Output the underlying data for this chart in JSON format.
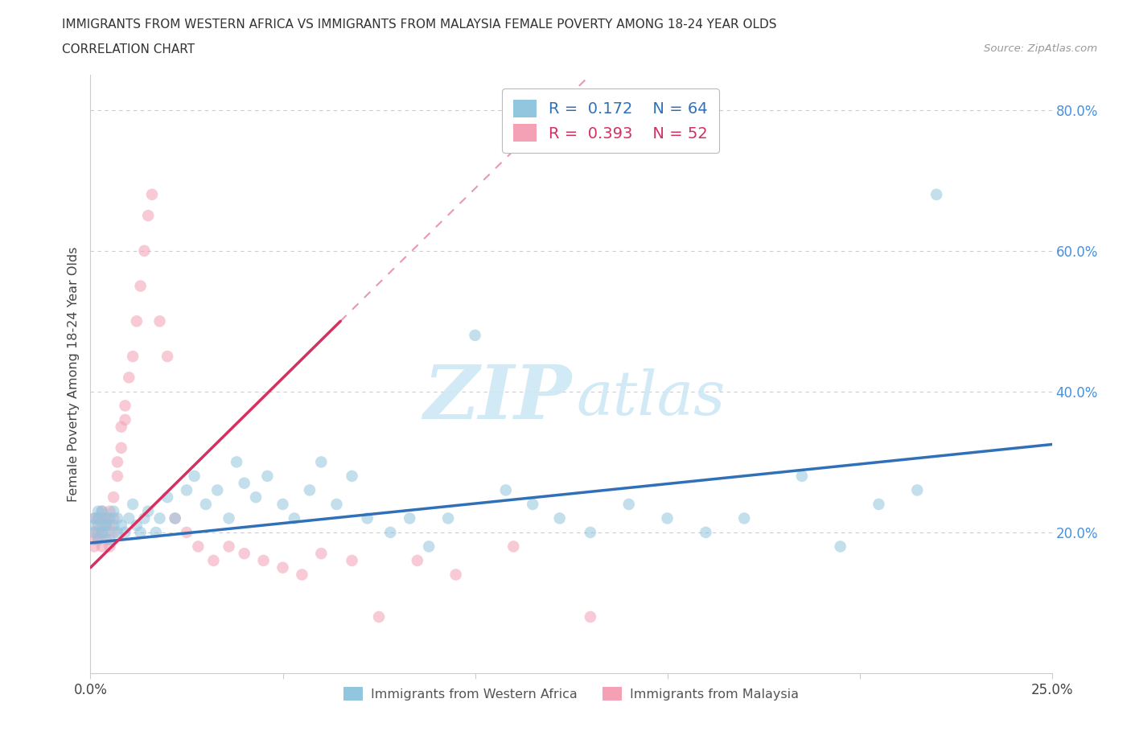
{
  "title_line1": "IMMIGRANTS FROM WESTERN AFRICA VS IMMIGRANTS FROM MALAYSIA FEMALE POVERTY AMONG 18-24 YEAR OLDS",
  "title_line2": "CORRELATION CHART",
  "source_text": "Source: ZipAtlas.com",
  "ylabel": "Female Poverty Among 18-24 Year Olds",
  "xlim": [
    0.0,
    0.25
  ],
  "ylim": [
    0.0,
    0.85
  ],
  "R_western_africa": 0.172,
  "N_western_africa": 64,
  "R_malaysia": 0.393,
  "N_malaysia": 52,
  "color_western_africa": "#92c5de",
  "color_malaysia": "#f4a0b5",
  "trendline_color_western_africa": "#3070b8",
  "trendline_color_malaysia": "#d63060",
  "watermark_color": "#cde8f5",
  "legend_label_1": "Immigrants from Western Africa",
  "legend_label_2": "Immigrants from Malaysia",
  "wa_x": [
    0.001,
    0.001,
    0.001,
    0.002,
    0.002,
    0.002,
    0.003,
    0.003,
    0.003,
    0.004,
    0.004,
    0.004,
    0.005,
    0.005,
    0.006,
    0.006,
    0.007,
    0.007,
    0.008,
    0.009,
    0.01,
    0.011,
    0.012,
    0.013,
    0.014,
    0.015,
    0.017,
    0.018,
    0.02,
    0.022,
    0.025,
    0.027,
    0.03,
    0.033,
    0.036,
    0.038,
    0.04,
    0.043,
    0.046,
    0.05,
    0.053,
    0.057,
    0.06,
    0.064,
    0.068,
    0.072,
    0.078,
    0.083,
    0.088,
    0.093,
    0.1,
    0.108,
    0.115,
    0.122,
    0.13,
    0.14,
    0.15,
    0.16,
    0.17,
    0.185,
    0.195,
    0.205,
    0.215,
    0.22
  ],
  "wa_y": [
    0.22,
    0.21,
    0.2,
    0.23,
    0.19,
    0.22,
    0.21,
    0.2,
    0.23,
    0.22,
    0.21,
    0.2,
    0.22,
    0.19,
    0.21,
    0.23,
    0.2,
    0.22,
    0.21,
    0.2,
    0.22,
    0.24,
    0.21,
    0.2,
    0.22,
    0.23,
    0.2,
    0.22,
    0.25,
    0.22,
    0.26,
    0.28,
    0.24,
    0.26,
    0.22,
    0.3,
    0.27,
    0.25,
    0.28,
    0.24,
    0.22,
    0.26,
    0.3,
    0.24,
    0.28,
    0.22,
    0.2,
    0.22,
    0.18,
    0.22,
    0.48,
    0.26,
    0.24,
    0.22,
    0.2,
    0.24,
    0.22,
    0.2,
    0.22,
    0.28,
    0.18,
    0.24,
    0.26,
    0.68
  ],
  "ma_x": [
    0.001,
    0.001,
    0.001,
    0.001,
    0.002,
    0.002,
    0.002,
    0.002,
    0.003,
    0.003,
    0.003,
    0.003,
    0.004,
    0.004,
    0.004,
    0.005,
    0.005,
    0.005,
    0.006,
    0.006,
    0.006,
    0.007,
    0.007,
    0.008,
    0.008,
    0.009,
    0.009,
    0.01,
    0.011,
    0.012,
    0.013,
    0.014,
    0.015,
    0.016,
    0.018,
    0.02,
    0.022,
    0.025,
    0.028,
    0.032,
    0.036,
    0.04,
    0.045,
    0.05,
    0.055,
    0.06,
    0.068,
    0.075,
    0.085,
    0.095,
    0.11,
    0.13
  ],
  "ma_y": [
    0.22,
    0.2,
    0.19,
    0.18,
    0.22,
    0.21,
    0.2,
    0.19,
    0.23,
    0.22,
    0.2,
    0.18,
    0.22,
    0.21,
    0.19,
    0.23,
    0.21,
    0.18,
    0.25,
    0.22,
    0.2,
    0.3,
    0.28,
    0.35,
    0.32,
    0.38,
    0.36,
    0.42,
    0.45,
    0.5,
    0.55,
    0.6,
    0.65,
    0.68,
    0.5,
    0.45,
    0.22,
    0.2,
    0.18,
    0.16,
    0.18,
    0.17,
    0.16,
    0.15,
    0.14,
    0.17,
    0.16,
    0.08,
    0.16,
    0.14,
    0.18,
    0.08
  ]
}
